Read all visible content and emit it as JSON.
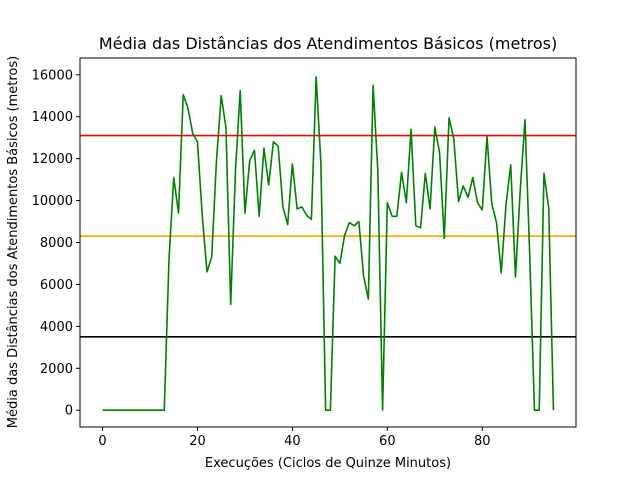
{
  "chart_data": {
    "type": "line",
    "title": "Média das Distâncias dos Atendimentos Básicos (metros)",
    "xlabel": "Execuções (Ciclos de Quinze Minutos)",
    "ylabel": "Média das Distâncias dos Atendimentos Básicos (metros)",
    "xlim": [
      -4.75,
      99.75
    ],
    "ylim": [
      -800,
      16800
    ],
    "xticks": [
      0,
      20,
      40,
      60,
      80
    ],
    "yticks": [
      0,
      2000,
      4000,
      6000,
      8000,
      10000,
      12000,
      14000,
      16000
    ],
    "grid": false,
    "series": [
      {
        "color": "#008000",
        "x": [
          0,
          1,
          2,
          3,
          4,
          5,
          6,
          7,
          8,
          9,
          10,
          11,
          12,
          13,
          14,
          15,
          16,
          17,
          18,
          19,
          20,
          21,
          22,
          23,
          24,
          25,
          26,
          27,
          28,
          29,
          30,
          31,
          32,
          33,
          34,
          35,
          36,
          37,
          38,
          39,
          40,
          41,
          42,
          43,
          44,
          45,
          46,
          47,
          48,
          49,
          50,
          51,
          52,
          53,
          54,
          55,
          56,
          57,
          58,
          59,
          60,
          61,
          62,
          63,
          64,
          65,
          66,
          67,
          68,
          69,
          70,
          71,
          72,
          73,
          74,
          75,
          76,
          77,
          78,
          79,
          80,
          81,
          82,
          83,
          84,
          85,
          86,
          87,
          88,
          89,
          90,
          91,
          92,
          93,
          94,
          95
        ],
        "y": [
          0,
          0,
          0,
          0,
          0,
          0,
          0,
          0,
          0,
          0,
          0,
          0,
          0,
          0,
          7200,
          11100,
          9400,
          15050,
          14400,
          13200,
          12800,
          9300,
          6600,
          7300,
          11900,
          15000,
          13500,
          5050,
          11400,
          15250,
          9400,
          11900,
          12400,
          9250,
          12500,
          10750,
          12800,
          12600,
          9700,
          8850,
          11750,
          9600,
          9700,
          9300,
          9100,
          15900,
          11800,
          0,
          0,
          7350,
          7000,
          8350,
          8950,
          8800,
          9000,
          6400,
          5300,
          15500,
          11400,
          0,
          9900,
          9250,
          9250,
          11350,
          9900,
          13400,
          8800,
          8700,
          11300,
          9600,
          13500,
          12300,
          8200,
          13950,
          12950,
          9950,
          10700,
          10150,
          11100,
          9900,
          9550,
          13050,
          9850,
          8950,
          6550,
          9800,
          11700,
          6350,
          10500,
          13850,
          7400,
          0,
          0,
          11300,
          9650,
          0
        ]
      }
    ],
    "reference_lines": [
      {
        "y": 13100,
        "color": "#ff0000"
      },
      {
        "y": 8300,
        "color": "#ffa500"
      },
      {
        "y": 3500,
        "color": "#000000"
      }
    ]
  }
}
